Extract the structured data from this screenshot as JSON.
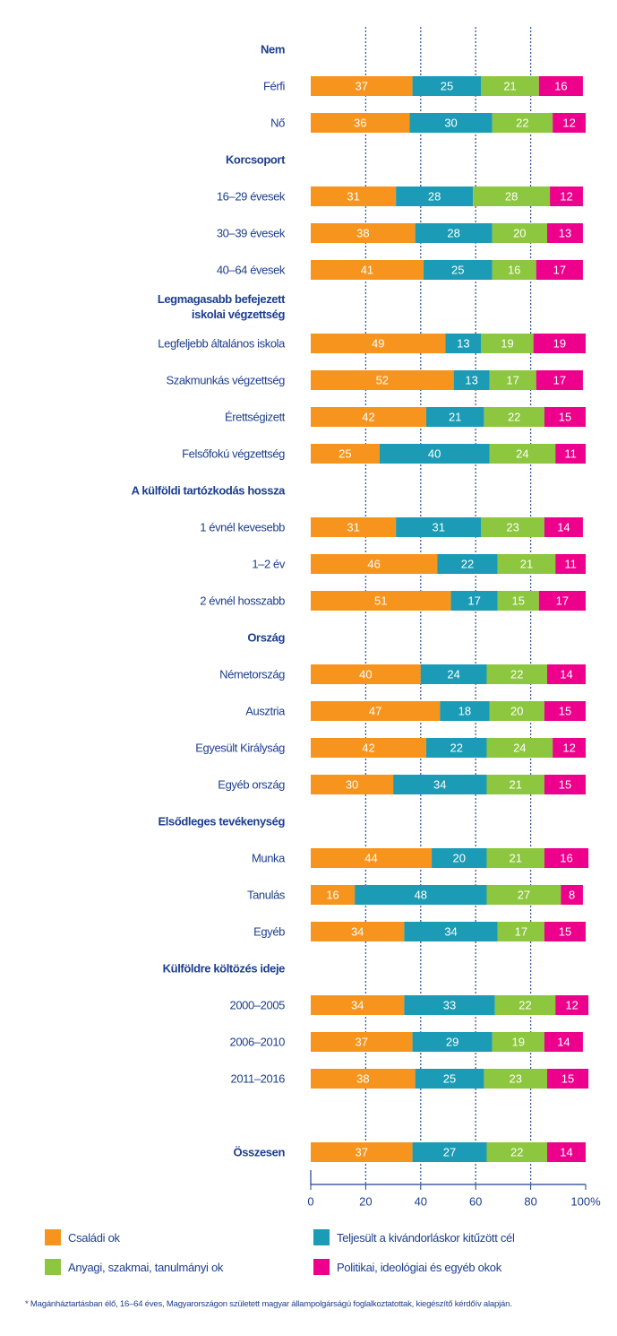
{
  "chart_data": {
    "type": "bar",
    "orientation": "horizontal",
    "stacked": true,
    "categories": [
      "Nem",
      "Férfi",
      "Nő",
      "Korcsoport",
      "16–29 évesek",
      "30–39 évesek",
      "40–64 évesek",
      "Legmagasabb befejezett iskolai végzettség",
      "Legfeljebb általános iskola",
      "Szakmunkás végzettség",
      "Érettségizett",
      "Felsőfokú végzettség",
      "A külföldi tartózkodás hossza",
      "1 évnél kevesebb",
      "1–2 év",
      "2 évnél hosszabb",
      "Ország",
      "Németország",
      "Ausztria",
      "Egyesült Királyság",
      "Egyéb ország",
      "Elsődleges tevékenység",
      "Munka",
      "Tanulás",
      "Egyéb",
      "Külföldre költözés ideje",
      "2000–2005",
      "2006–2010",
      "2011–2016",
      "Összesen"
    ],
    "series": [
      {
        "name": "Családi ok",
        "color": "#f7941d",
        "values": [
          null,
          37,
          36,
          null,
          31,
          38,
          41,
          null,
          49,
          52,
          42,
          25,
          null,
          31,
          46,
          51,
          null,
          40,
          47,
          42,
          30,
          null,
          44,
          16,
          34,
          null,
          34,
          37,
          38,
          37
        ]
      },
      {
        "name": "Teljesült a kivándorláskor kitűzött cél",
        "color": "#1b9bb5",
        "values": [
          null,
          25,
          30,
          null,
          28,
          28,
          25,
          null,
          13,
          13,
          21,
          40,
          null,
          31,
          22,
          17,
          null,
          24,
          18,
          22,
          34,
          null,
          20,
          48,
          34,
          null,
          33,
          29,
          25,
          27
        ]
      },
      {
        "name": "Anyagi, szakmai, tanulmányi ok",
        "color": "#8dc63f",
        "values": [
          null,
          21,
          22,
          null,
          28,
          20,
          16,
          null,
          19,
          17,
          22,
          24,
          null,
          23,
          21,
          15,
          null,
          22,
          20,
          24,
          21,
          null,
          21,
          27,
          17,
          null,
          22,
          19,
          23,
          22
        ]
      },
      {
        "name": "Politikai, ideológiai és egyéb okok",
        "color": "#ec008c",
        "values": [
          null,
          16,
          12,
          null,
          12,
          13,
          17,
          null,
          19,
          17,
          15,
          11,
          null,
          14,
          11,
          17,
          null,
          14,
          15,
          12,
          15,
          null,
          16,
          8,
          15,
          null,
          12,
          14,
          15,
          14
        ]
      }
    ],
    "xlim": [
      0,
      100
    ],
    "xticks": [
      0,
      20,
      40,
      60,
      80,
      {
        "value": 100,
        "label": "100%"
      }
    ],
    "grid": true,
    "footnote": "* Magánháztartásban élő, 16–64 éves, Magyarországon született magyar állampolgárságú foglalkoztatottak, kiegészítő kérdőív alapján."
  }
}
